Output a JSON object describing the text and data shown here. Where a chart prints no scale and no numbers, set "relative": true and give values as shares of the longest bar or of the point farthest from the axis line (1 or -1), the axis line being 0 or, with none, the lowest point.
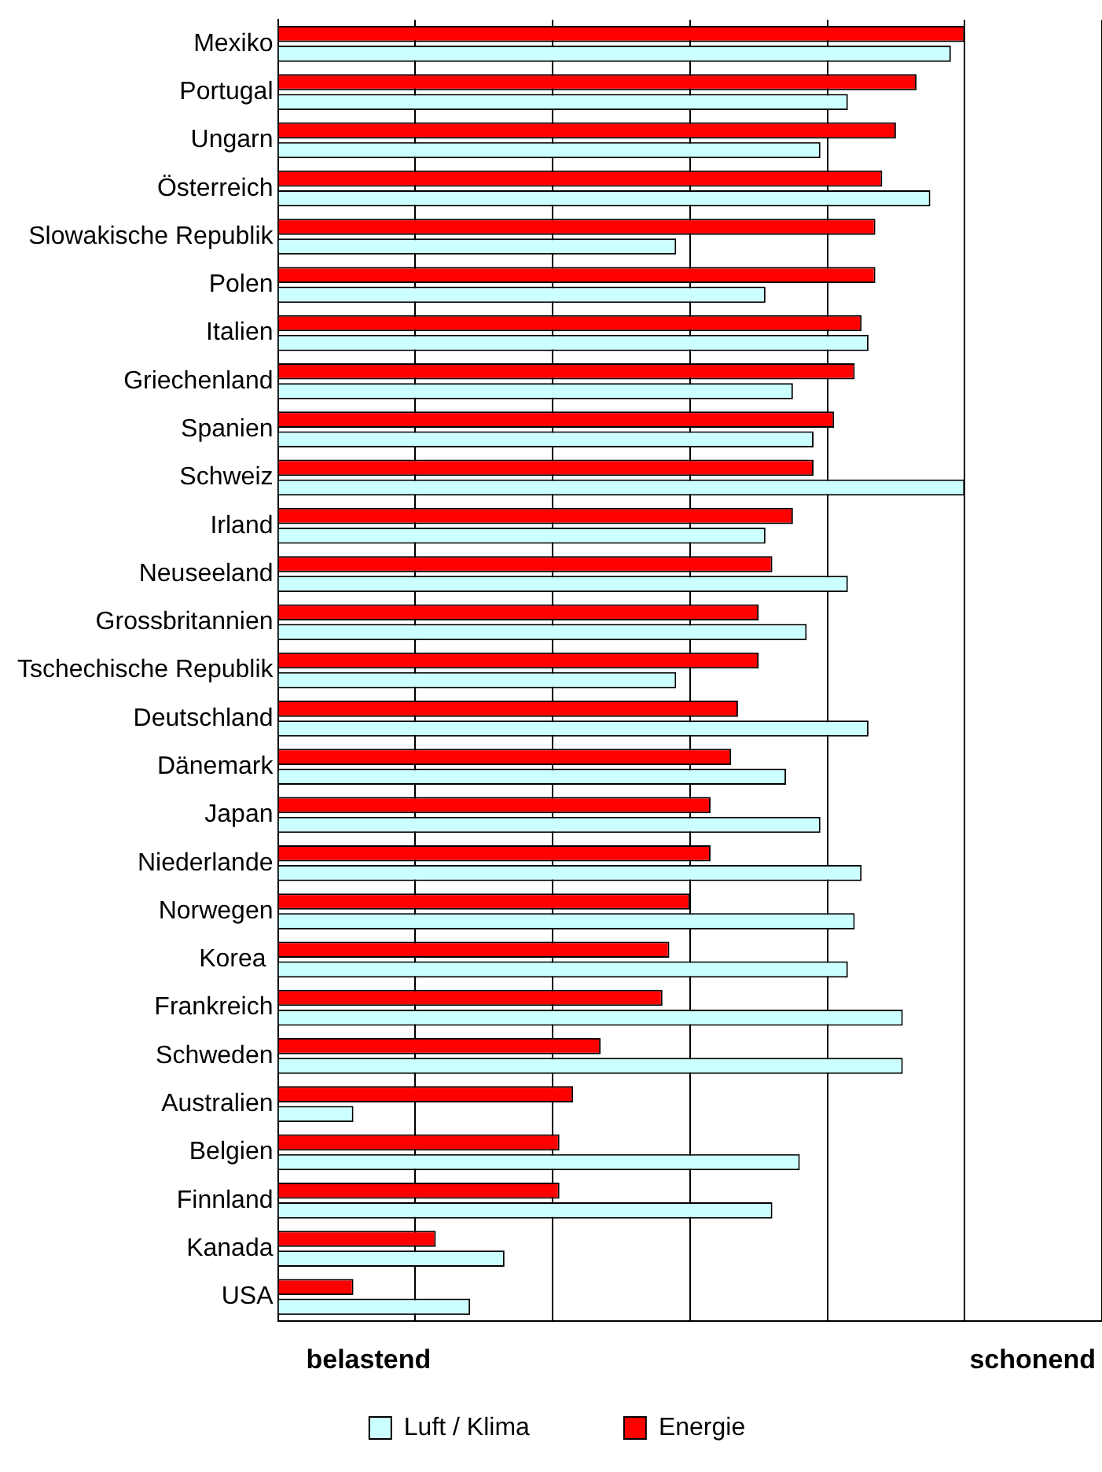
{
  "chart_data": {
    "type": "bar",
    "orientation": "horizontal",
    "relative": true,
    "grid": "x",
    "legend": "bottom",
    "categories": [
      "Mexiko",
      "Portugal",
      "Ungarn",
      "Österreich",
      "Slowakische Republik",
      "Polen",
      "Italien",
      "Griechenland",
      "Spanien",
      "Schweiz",
      "Irland",
      "Neuseeland",
      "Grossbritannien",
      "Tschechische Republik",
      "Deutschland",
      "Dänemark",
      "Japan",
      "Niederlande",
      "Norwegen",
      "Korea ",
      "Frankreich",
      "Schweden",
      "Australien",
      "Belgien",
      "Finnland",
      "Kanada",
      "USA"
    ],
    "series": [
      {
        "name": "Luft / Klima",
        "color": "#ccffff",
        "values": [
          0.98,
          0.83,
          0.79,
          0.95,
          0.58,
          0.71,
          0.86,
          0.75,
          0.78,
          1.0,
          0.71,
          0.83,
          0.77,
          0.58,
          0.86,
          0.74,
          0.79,
          0.85,
          0.84,
          0.83,
          0.91,
          0.91,
          0.11,
          0.76,
          0.72,
          0.33,
          0.28
        ]
      },
      {
        "name": "Energie",
        "color": "#ff0000",
        "values": [
          1.0,
          0.93,
          0.9,
          0.88,
          0.87,
          0.87,
          0.85,
          0.84,
          0.81,
          0.78,
          0.75,
          0.72,
          0.7,
          0.7,
          0.67,
          0.66,
          0.63,
          0.63,
          0.6,
          0.57,
          0.56,
          0.47,
          0.43,
          0.41,
          0.41,
          0.23,
          0.11
        ]
      }
    ],
    "annotations": [
      "belastend",
      "schonend"
    ]
  }
}
